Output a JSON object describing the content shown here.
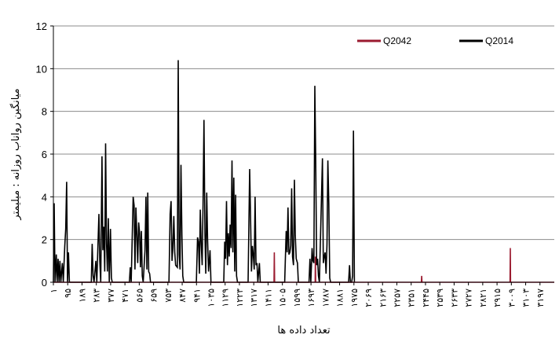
{
  "chart_data": {
    "type": "line",
    "xlabel": "تعداد داده ها",
    "ylabel": "میانگین رواناب روزانه : میلیمتر",
    "ylim": [
      0,
      12
    ],
    "yticks": [
      0,
      2,
      4,
      6,
      8,
      10,
      12
    ],
    "xlim": [
      1,
      3291
    ],
    "grid": "horizontal",
    "legend_position": "top-right",
    "xtick_values": [
      1,
      95,
      189,
      283,
      377,
      471,
      565,
      659,
      753,
      847,
      941,
      1035,
      1129,
      1223,
      1317,
      1411,
      1505,
      1599,
      1693,
      1787,
      1881,
      1975,
      2069,
      2163,
      2257,
      2351,
      2445,
      2539,
      2633,
      2727,
      2821,
      2915,
      3009,
      3103,
      3197
    ],
    "xtick_labels": [
      "۱",
      "۹۵",
      "۱۸۹",
      "۲۸۳",
      "۳۷۷",
      "۴۷۱",
      "۵۶۵",
      "۶۵۹",
      "۷۵۳",
      "۸۴۷",
      "۹۴۱",
      "۱۰۳۵",
      "۱۱۲۹",
      "۱۲۲۳",
      "۱۳۱۷",
      "۱۴۱۱",
      "۱۵۰۵",
      "۱۵۹۹",
      "۱۶۹۳",
      "۱۷۸۷",
      "۱۸۸۱",
      "۱۹۷۵",
      "۲۰۶۹",
      "۲۱۶۳",
      "۲۲۵۷",
      "۲۳۵۱",
      "۲۴۴۵",
      "۲۵۳۹",
      "۲۶۳۳",
      "۲۷۲۷",
      "۲۸۲۱",
      "۲۹۱۵",
      "۳۰۰۹",
      "۳۱۰۳",
      "۳۱۹۷"
    ],
    "series": [
      {
        "name": "Q2042",
        "color": "#9b1b30",
        "points": [
          [
            1,
            0
          ],
          [
            1450,
            0
          ],
          [
            1452,
            1.4
          ],
          [
            1454,
            0
          ],
          [
            1720,
            0
          ],
          [
            1722,
            1.2
          ],
          [
            1724,
            0
          ],
          [
            2418,
            0
          ],
          [
            2420,
            0.3
          ],
          [
            2422,
            0
          ],
          [
            3000,
            0
          ],
          [
            3002,
            1.6
          ],
          [
            3004,
            0
          ],
          [
            3291,
            0
          ]
        ]
      },
      {
        "name": "Q2014",
        "color": "#000000",
        "points": [
          [
            1,
            0
          ],
          [
            6,
            3.7
          ],
          [
            12,
            0
          ],
          [
            20,
            1.3
          ],
          [
            26,
            0
          ],
          [
            32,
            1.1
          ],
          [
            38,
            0
          ],
          [
            44,
            1.0
          ],
          [
            50,
            0
          ],
          [
            60,
            0.9
          ],
          [
            66,
            0
          ],
          [
            76,
            1.7
          ],
          [
            82,
            2.5
          ],
          [
            88,
            4.7
          ],
          [
            94,
            0
          ],
          [
            100,
            1.4
          ],
          [
            106,
            0
          ],
          [
            140,
            0
          ],
          [
            250,
            0
          ],
          [
            256,
            1.8
          ],
          [
            262,
            0.3
          ],
          [
            268,
            0
          ],
          [
            280,
            1.0
          ],
          [
            286,
            0
          ],
          [
            300,
            3.2
          ],
          [
            306,
            1.0
          ],
          [
            312,
            0
          ],
          [
            320,
            5.9
          ],
          [
            326,
            1.5
          ],
          [
            332,
            2.6
          ],
          [
            338,
            0.5
          ],
          [
            344,
            6.5
          ],
          [
            350,
            1.8
          ],
          [
            356,
            0.5
          ],
          [
            362,
            3.0
          ],
          [
            368,
            0
          ],
          [
            376,
            2.5
          ],
          [
            382,
            0.2
          ],
          [
            388,
            0
          ],
          [
            500,
            0
          ],
          [
            506,
            0.7
          ],
          [
            512,
            0
          ],
          [
            525,
            4.0
          ],
          [
            531,
            3.6
          ],
          [
            537,
            0.6
          ],
          [
            543,
            3.5
          ],
          [
            549,
            2.2
          ],
          [
            555,
            0.9
          ],
          [
            561,
            2.8
          ],
          [
            567,
            2.3
          ],
          [
            573,
            0.7
          ],
          [
            579,
            2.4
          ],
          [
            585,
            0.3
          ],
          [
            591,
            0
          ],
          [
            603,
            1.5
          ],
          [
            609,
            4.0
          ],
          [
            615,
            0.6
          ],
          [
            621,
            4.2
          ],
          [
            627,
            0.5
          ],
          [
            633,
            0.4
          ],
          [
            639,
            0
          ],
          [
            760,
            0
          ],
          [
            768,
            3.2
          ],
          [
            774,
            3.8
          ],
          [
            780,
            1.0
          ],
          [
            786,
            1.6
          ],
          [
            792,
            3.1
          ],
          [
            798,
            1.4
          ],
          [
            804,
            0.8
          ],
          [
            815,
            0.7
          ],
          [
            821,
            10.4
          ],
          [
            827,
            1.3
          ],
          [
            833,
            0.6
          ],
          [
            839,
            5.5
          ],
          [
            845,
            2.2
          ],
          [
            851,
            0.3
          ],
          [
            857,
            0
          ],
          [
            940,
            0
          ],
          [
            948,
            2.1
          ],
          [
            954,
            1.9
          ],
          [
            960,
            0.4
          ],
          [
            966,
            3.4
          ],
          [
            972,
            1.8
          ],
          [
            978,
            0.8
          ],
          [
            984,
            3.6
          ],
          [
            990,
            7.6
          ],
          [
            996,
            2.3
          ],
          [
            1002,
            0.4
          ],
          [
            1008,
            4.2
          ],
          [
            1014,
            2.0
          ],
          [
            1020,
            0.5
          ],
          [
            1030,
            1.5
          ],
          [
            1036,
            0
          ],
          [
            1120,
            0
          ],
          [
            1126,
            1.9
          ],
          [
            1132,
            1.1
          ],
          [
            1138,
            3.8
          ],
          [
            1144,
            0.8
          ],
          [
            1150,
            2.3
          ],
          [
            1156,
            1.2
          ],
          [
            1162,
            2.7
          ],
          [
            1168,
            1.6
          ],
          [
            1174,
            5.7
          ],
          [
            1180,
            1.4
          ],
          [
            1186,
            4.9
          ],
          [
            1192,
            0.5
          ],
          [
            1198,
            4.1
          ],
          [
            1204,
            0.3
          ],
          [
            1210,
            0
          ],
          [
            1280,
            0
          ],
          [
            1290,
            5.3
          ],
          [
            1296,
            3.1
          ],
          [
            1302,
            0.5
          ],
          [
            1308,
            1.7
          ],
          [
            1314,
            1.3
          ],
          [
            1320,
            0.6
          ],
          [
            1326,
            4.0
          ],
          [
            1332,
            0.8
          ],
          [
            1338,
            0.9
          ],
          [
            1344,
            0
          ],
          [
            1354,
            0.9
          ],
          [
            1360,
            0
          ],
          [
            1520,
            0
          ],
          [
            1530,
            2.4
          ],
          [
            1536,
            1.4
          ],
          [
            1542,
            3.5
          ],
          [
            1548,
            1.3
          ],
          [
            1554,
            1.4
          ],
          [
            1560,
            1.7
          ],
          [
            1566,
            4.4
          ],
          [
            1572,
            1.2
          ],
          [
            1578,
            0.8
          ],
          [
            1584,
            4.8
          ],
          [
            1590,
            2.2
          ],
          [
            1596,
            1.1
          ],
          [
            1604,
            0.9
          ],
          [
            1610,
            0
          ],
          [
            1680,
            0
          ],
          [
            1686,
            1.1
          ],
          [
            1692,
            0
          ],
          [
            1700,
            1.6
          ],
          [
            1706,
            1.0
          ],
          [
            1712,
            0.9
          ],
          [
            1718,
            9.2
          ],
          [
            1724,
            5.8
          ],
          [
            1730,
            0.8
          ],
          [
            1736,
            1.1
          ],
          [
            1742,
            0.3
          ],
          [
            1748,
            0
          ],
          [
            1768,
            5.8
          ],
          [
            1774,
            0.9
          ],
          [
            1780,
            1.2
          ],
          [
            1786,
            1.4
          ],
          [
            1792,
            0.4
          ],
          [
            1798,
            1.8
          ],
          [
            1804,
            5.7
          ],
          [
            1810,
            3.7
          ],
          [
            1816,
            0.2
          ],
          [
            1822,
            0
          ],
          [
            1940,
            0
          ],
          [
            1946,
            0.8
          ],
          [
            1952,
            0
          ],
          [
            1960,
            0
          ],
          [
            1966,
            0.3
          ],
          [
            1972,
            7.1
          ],
          [
            1978,
            0
          ]
        ]
      }
    ]
  }
}
